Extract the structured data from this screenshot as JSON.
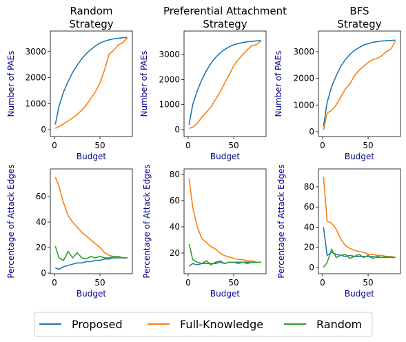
{
  "chart_data": [
    {
      "type": "line",
      "title": "Random\nStrategy",
      "xlabel": "Budget",
      "ylabel": "Number of PAEs",
      "x": [
        1,
        5,
        10,
        15,
        20,
        25,
        30,
        35,
        40,
        45,
        50,
        55,
        60,
        65,
        70,
        75,
        80
      ],
      "xlim": [
        -4.5,
        85.5
      ],
      "xticks": [
        0,
        50
      ],
      "ylim": [
        -265,
        3790
      ],
      "yticks": [
        0,
        1000,
        2000,
        3000
      ],
      "series": [
        {
          "color": "#1f77b4",
          "values": [
            200,
            900,
            1450,
            1850,
            2200,
            2480,
            2720,
            2920,
            3080,
            3220,
            3330,
            3400,
            3450,
            3490,
            3510,
            3530,
            3550
          ]
        },
        {
          "color": "#ff7f0e",
          "values": [
            50,
            120,
            220,
            330,
            450,
            580,
            750,
            950,
            1200,
            1450,
            1800,
            2300,
            2900,
            3050,
            3250,
            3350,
            3530
          ]
        }
      ]
    },
    {
      "type": "line",
      "title": "Preferential Attachment\nStrategy",
      "xlabel": "Budget",
      "ylabel": "Number of PAEs",
      "x": [
        1,
        5,
        10,
        15,
        20,
        25,
        30,
        35,
        40,
        45,
        50,
        55,
        60,
        65,
        70,
        75,
        80
      ],
      "xlim": [
        -4.5,
        85.5
      ],
      "xticks": [
        0,
        50
      ],
      "ylim": [
        -275,
        3940
      ],
      "yticks": [
        0,
        1000,
        2000,
        3000
      ],
      "series": [
        {
          "color": "#1f77b4",
          "values": [
            200,
            1000,
            1550,
            2000,
            2350,
            2650,
            2880,
            3060,
            3200,
            3310,
            3390,
            3440,
            3480,
            3510,
            3530,
            3545,
            3560
          ]
        },
        {
          "color": "#ff7f0e",
          "values": [
            50,
            100,
            250,
            500,
            700,
            900,
            1200,
            1500,
            1850,
            2200,
            2550,
            2800,
            3000,
            3200,
            3350,
            3400,
            3550
          ]
        }
      ]
    },
    {
      "type": "line",
      "title": "BFS\nStrategy",
      "xlabel": "Budget",
      "ylabel": "Number of PAEs",
      "x": [
        1,
        5,
        10,
        15,
        20,
        25,
        30,
        35,
        40,
        45,
        50,
        55,
        60,
        65,
        70,
        75,
        80
      ],
      "xlim": [
        -4.5,
        85.5
      ],
      "xticks": [
        0,
        50
      ],
      "ylim": [
        -181,
        3775
      ],
      "yticks": [
        0,
        1000,
        2000,
        3000
      ],
      "series": [
        {
          "color": "#1f77b4",
          "values": [
            200,
            1100,
            1700,
            2100,
            2450,
            2700,
            2900,
            3050,
            3150,
            3250,
            3300,
            3350,
            3380,
            3400,
            3410,
            3420,
            3430
          ]
        },
        {
          "color": "#ff7f0e",
          "values": [
            50,
            700,
            800,
            1000,
            1300,
            1600,
            1800,
            2100,
            2300,
            2450,
            2600,
            2700,
            2750,
            2850,
            3000,
            3100,
            3400
          ]
        }
      ]
    },
    {
      "type": "line",
      "xlabel": "Budget",
      "ylabel": "Percentage of Attack Edges",
      "x": [
        1,
        5,
        10,
        15,
        20,
        25,
        30,
        35,
        40,
        45,
        50,
        55,
        60,
        65,
        70,
        75,
        80
      ],
      "xlim": [
        -4.5,
        85.5
      ],
      "xticks": [
        0,
        50
      ],
      "ylim": [
        -0.5,
        81.6
      ],
      "yticks": [
        0,
        20,
        40,
        60
      ],
      "series": [
        {
          "name": "Proposed",
          "color": "#1f77b4",
          "values": [
            4,
            3,
            5,
            6,
            7,
            8,
            8,
            9,
            9,
            10,
            10,
            11,
            11,
            12,
            12,
            12,
            12
          ]
        },
        {
          "name": "Full-Knowledge",
          "color": "#ff7f0e",
          "values": [
            75,
            68,
            55,
            45,
            40,
            36,
            32,
            29,
            26,
            23,
            20,
            16,
            14,
            13,
            13,
            12,
            12
          ]
        },
        {
          "name": "Random",
          "color": "#2ca02c",
          "values": [
            21,
            12,
            10,
            17,
            12,
            16,
            12,
            11,
            13,
            12,
            13,
            12,
            12,
            13,
            13,
            12,
            12
          ]
        }
      ]
    },
    {
      "type": "line",
      "xlabel": "Budget",
      "ylabel": "Percentage of Attack Edges",
      "x": [
        1,
        5,
        10,
        15,
        20,
        25,
        30,
        35,
        40,
        45,
        50,
        55,
        60,
        65,
        70,
        75,
        80
      ],
      "xlim": [
        -4.5,
        85.5
      ],
      "xticks": [
        0,
        50
      ],
      "ylim": [
        4.2,
        84.2
      ],
      "yticks": [
        20,
        40,
        60,
        80
      ],
      "series": [
        {
          "color": "#1f77b4",
          "values": [
            10,
            12,
            11,
            12,
            12,
            12,
            12,
            13,
            12,
            13,
            13,
            13,
            13,
            13,
            13,
            13,
            13
          ]
        },
        {
          "color": "#ff7f0e",
          "values": [
            77,
            55,
            40,
            31,
            28,
            25,
            23,
            20,
            18,
            17,
            16,
            15,
            15,
            14,
            14,
            13,
            13
          ]
        },
        {
          "color": "#2ca02c",
          "values": [
            27,
            15,
            13,
            12,
            14,
            11,
            13,
            14,
            12,
            13,
            13,
            12,
            13,
            12,
            13,
            13,
            13
          ]
        }
      ]
    },
    {
      "type": "line",
      "xlabel": "Budget",
      "ylabel": "Percentage of Attack Edges",
      "x": [
        1,
        5,
        10,
        15,
        20,
        25,
        30,
        35,
        40,
        45,
        50,
        55,
        60,
        65,
        70,
        75,
        80
      ],
      "xlim": [
        -4.5,
        85.5
      ],
      "xticks": [
        0,
        50
      ],
      "ylim": [
        -6.2,
        97.8
      ],
      "yticks": [
        0,
        20,
        40,
        60,
        80
      ],
      "series": [
        {
          "color": "#1f77b4",
          "values": [
            40,
            12,
            15,
            13,
            12,
            11,
            12,
            11,
            11,
            11,
            11,
            11,
            10,
            10,
            10,
            10,
            10
          ]
        },
        {
          "color": "#ff7f0e",
          "values": [
            90,
            46,
            44,
            38,
            28,
            22,
            19,
            17,
            16,
            15,
            13,
            13,
            12,
            12,
            11,
            11,
            10
          ]
        },
        {
          "color": "#2ca02c",
          "values": [
            0,
            5,
            18,
            10,
            12,
            13,
            9,
            11,
            13,
            10,
            12,
            9,
            11,
            10,
            11,
            10,
            10
          ]
        }
      ]
    }
  ]
}
